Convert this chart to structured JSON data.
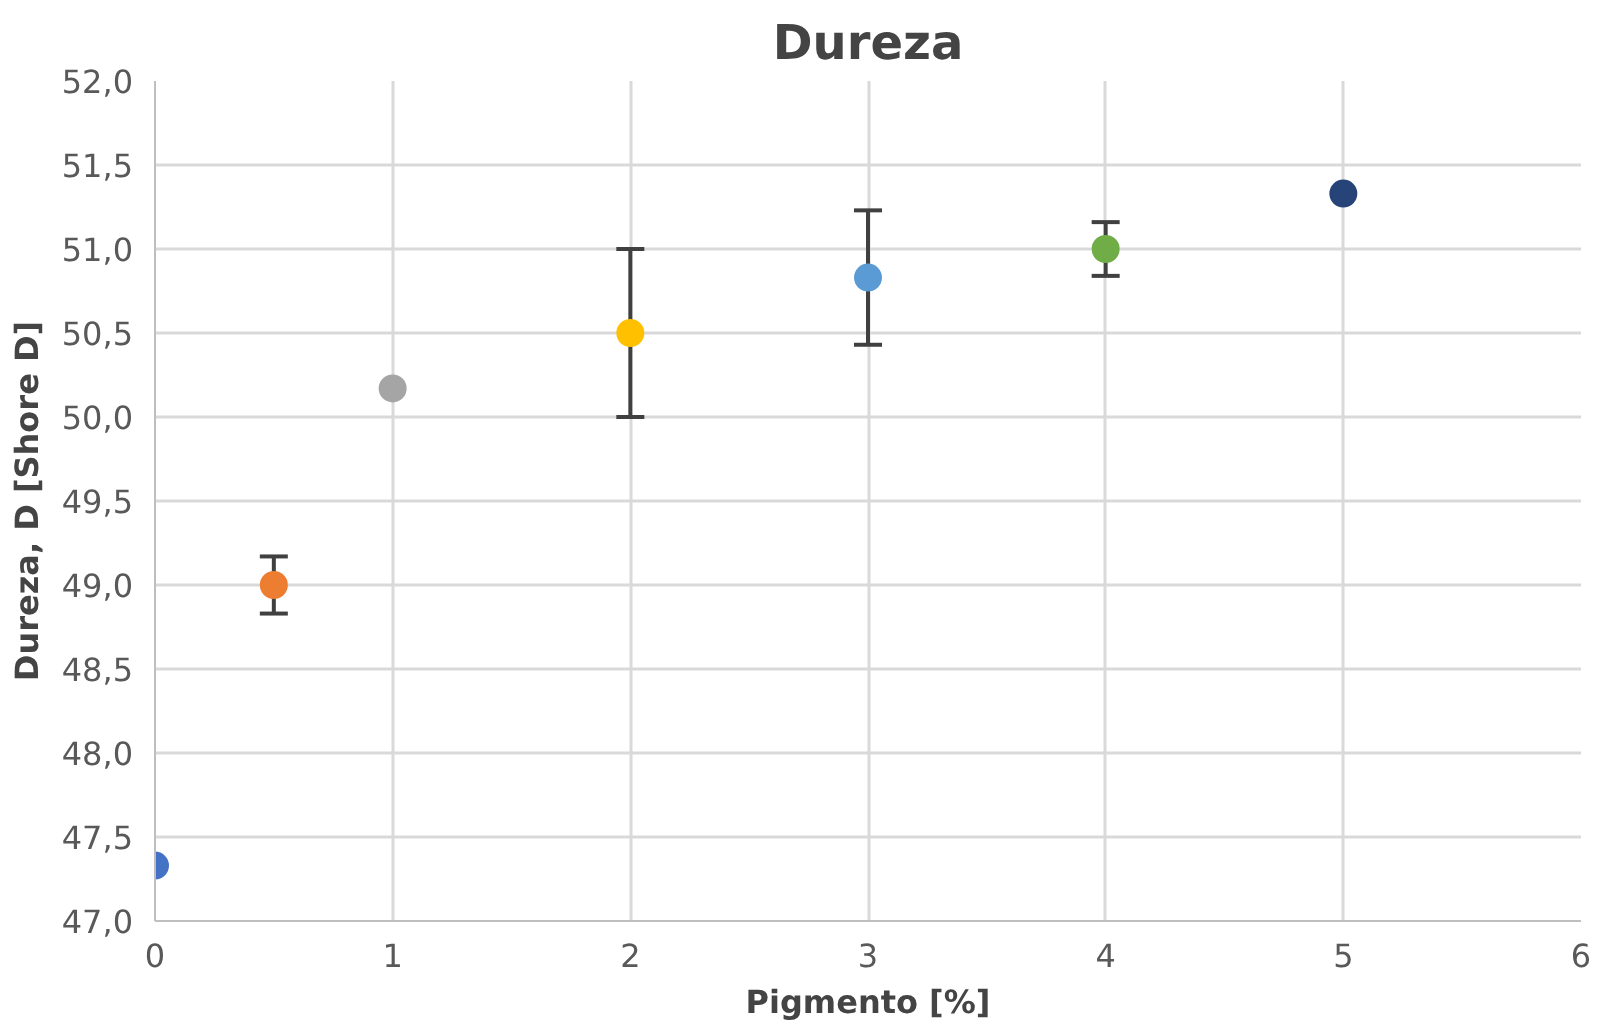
{
  "chart_data": {
    "type": "scatter",
    "title": "Dureza",
    "xlabel": "Pigmento [%]",
    "ylabel": "Dureza, D [Shore D]",
    "x": [
      0,
      0.5,
      1,
      2,
      3,
      4,
      5
    ],
    "values": [
      47.33,
      49.0,
      50.17,
      50.5,
      50.83,
      51.0,
      51.33
    ],
    "errors": [
      null,
      0.17,
      null,
      0.5,
      0.4,
      0.16,
      null
    ],
    "colors": [
      "#4472c4",
      "#ed7d31",
      "#a5a5a5",
      "#ffc000",
      "#5b9bd5",
      "#70ad47",
      "#264478"
    ],
    "xlim": [
      0,
      6
    ],
    "xticks": [
      0,
      1,
      2,
      3,
      4,
      5,
      6
    ],
    "ylim": [
      47,
      52
    ],
    "yticks": [
      {
        "value": 47,
        "label": "47,0"
      },
      {
        "value": 47.5,
        "label": "47,5"
      },
      {
        "value": 48,
        "label": "48,0"
      },
      {
        "value": 48.5,
        "label": "48,5"
      },
      {
        "value": 49,
        "label": "49,0"
      },
      {
        "value": 49.5,
        "label": "49,5"
      },
      {
        "value": 50,
        "label": "50,0"
      },
      {
        "value": 50.5,
        "label": "50,5"
      },
      {
        "value": 51,
        "label": "51,0"
      },
      {
        "value": 51.5,
        "label": "51,5"
      },
      {
        "value": 52,
        "label": "52,0"
      }
    ],
    "grid": true,
    "marker": "circle",
    "legend": false
  }
}
